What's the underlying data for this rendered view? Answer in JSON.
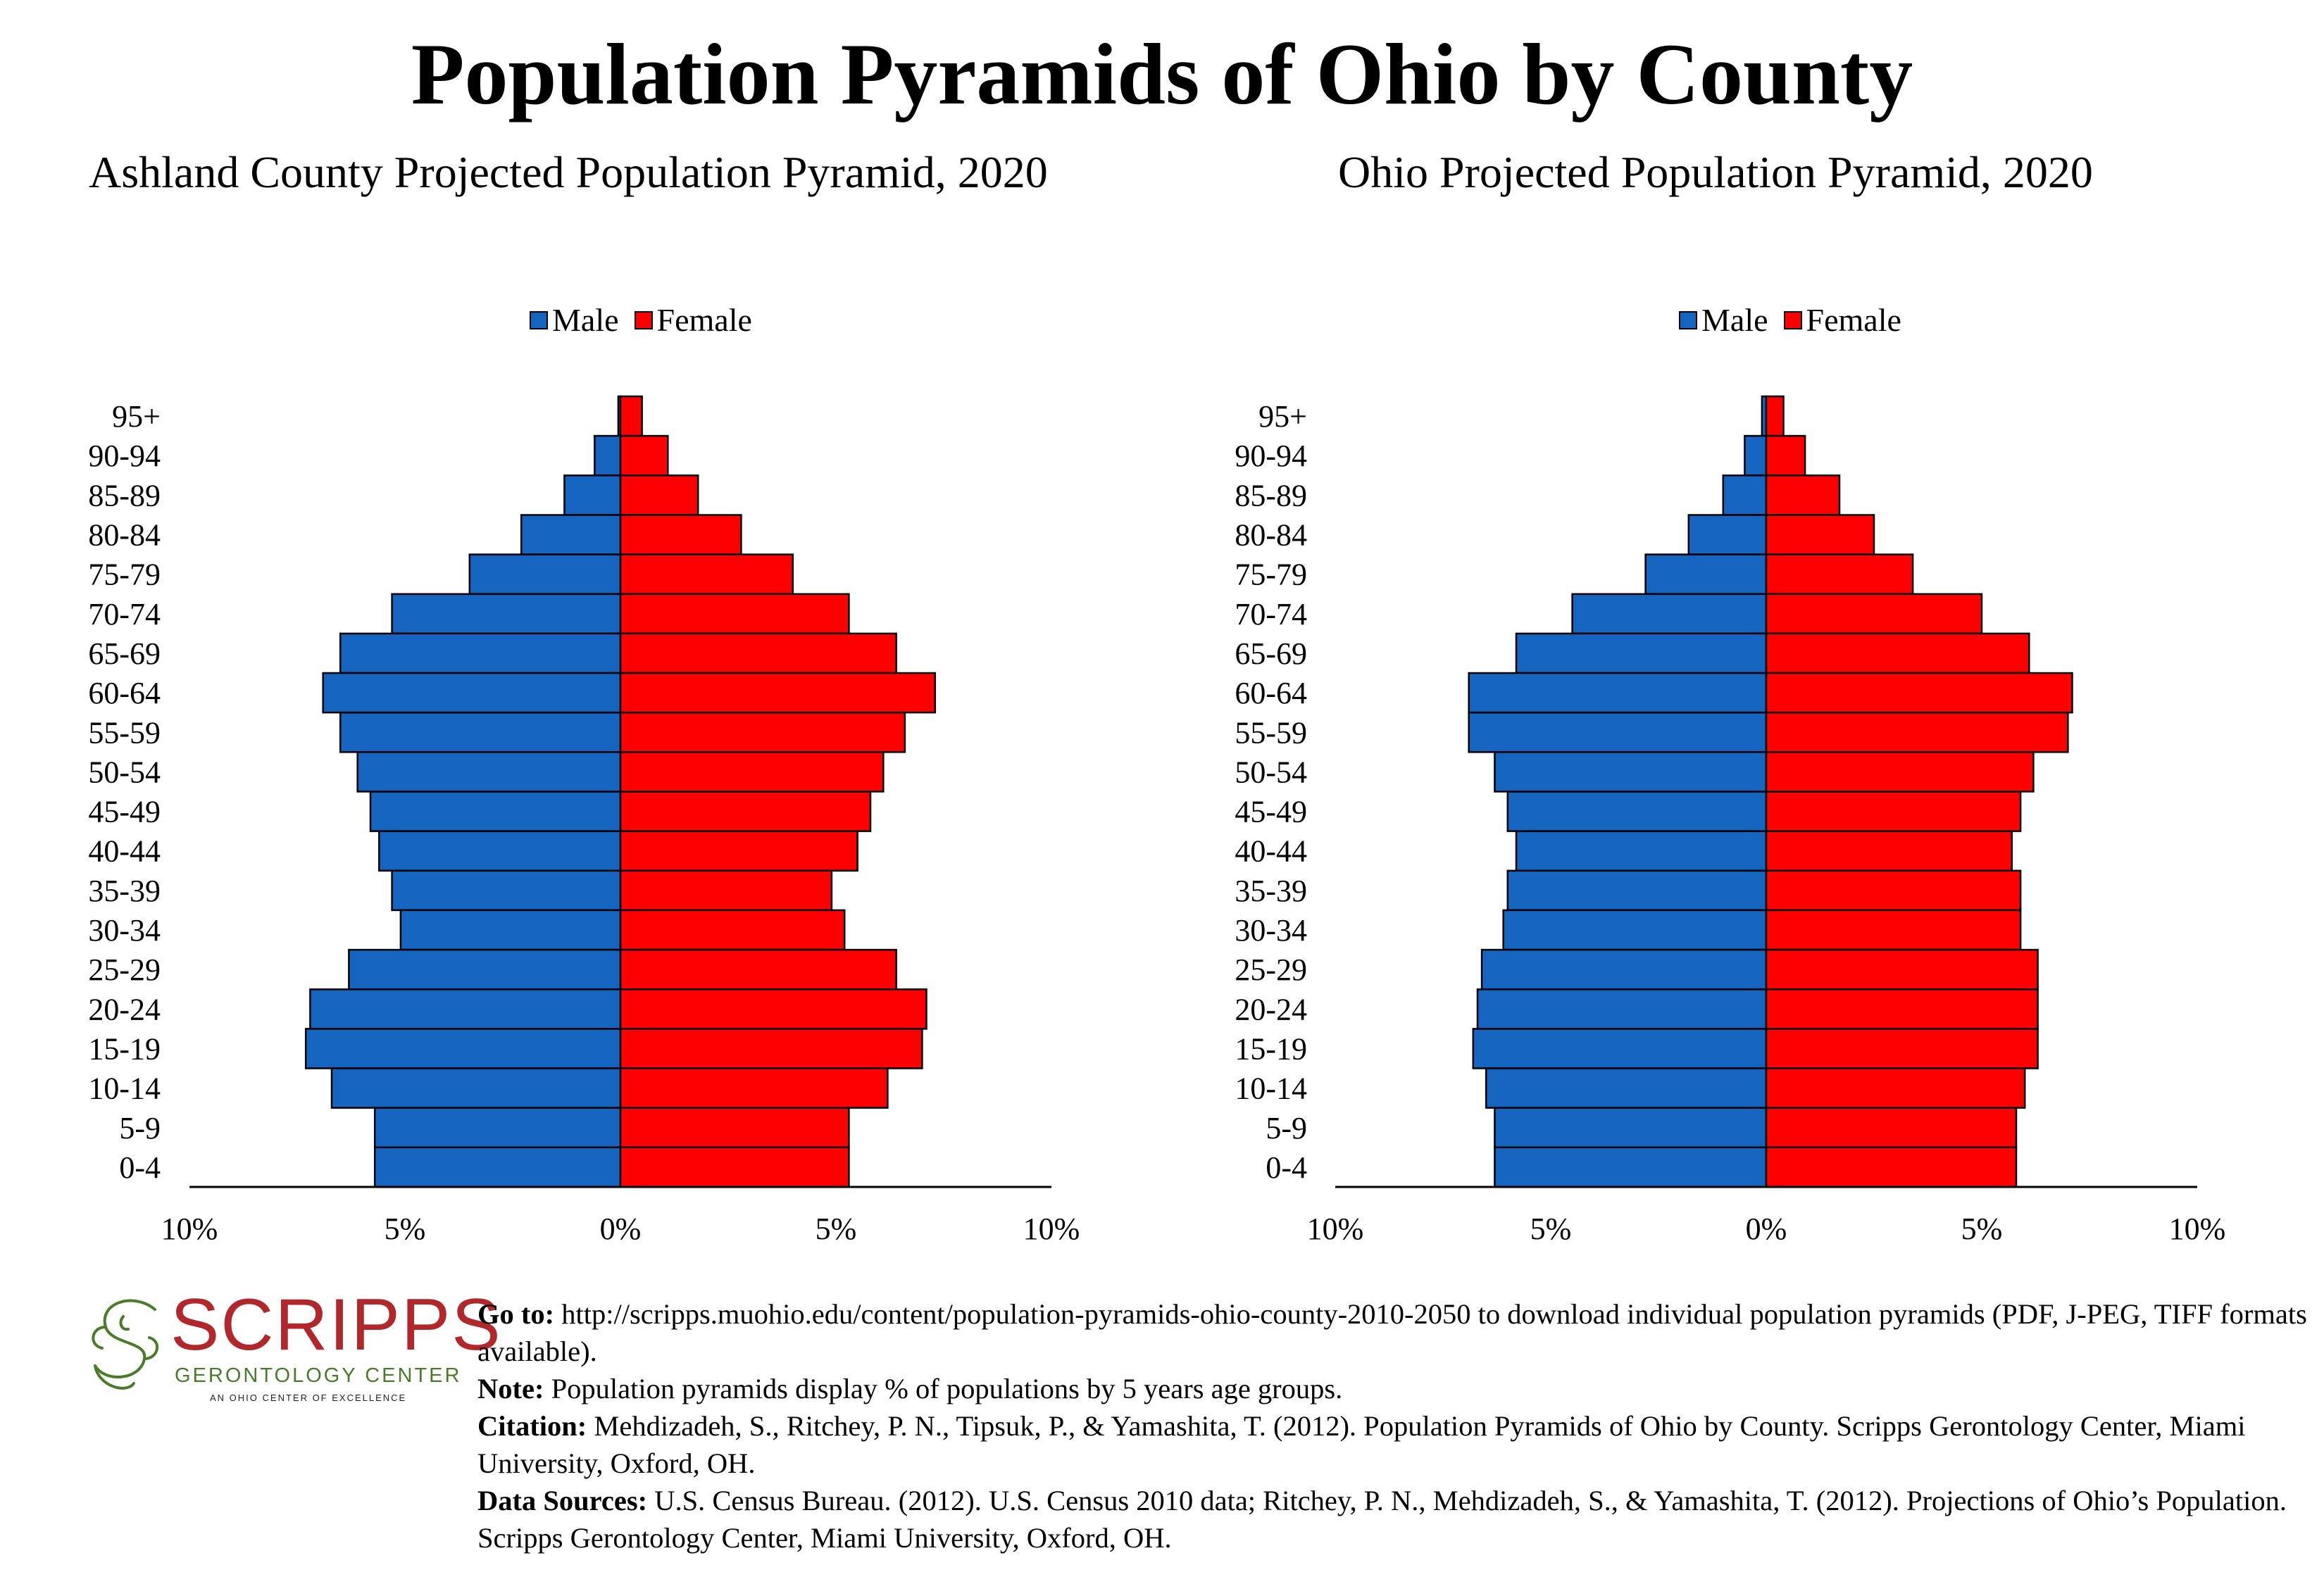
{
  "header": {
    "title": "Population Pyramids of Ohio by County"
  },
  "legend": {
    "male_label": "Male",
    "female_label": "Female"
  },
  "colors": {
    "male": "#1565c0",
    "female": "#ff0000",
    "outline": "#000000"
  },
  "chart_data": [
    {
      "type": "bar",
      "orientation": "horizontal-pyramid",
      "title": "Ashland County Projected Population Pyramid, 2020",
      "categories": [
        "95+",
        "90-94",
        "85-89",
        "80-84",
        "75-79",
        "70-74",
        "65-69",
        "60-64",
        "55-59",
        "50-54",
        "45-49",
        "40-44",
        "35-39",
        "30-34",
        "25-29",
        "20-24",
        "15-19",
        "10-14",
        "5-9",
        "0-4"
      ],
      "series": [
        {
          "name": "Male",
          "values": [
            0.05,
            0.6,
            1.3,
            2.3,
            3.5,
            5.3,
            6.5,
            6.9,
            6.5,
            6.1,
            5.8,
            5.6,
            5.3,
            5.1,
            6.3,
            7.2,
            7.3,
            6.7,
            5.7,
            5.7
          ]
        },
        {
          "name": "Female",
          "values": [
            0.5,
            1.1,
            1.8,
            2.8,
            4.0,
            5.3,
            6.4,
            7.3,
            6.6,
            6.1,
            5.8,
            5.5,
            4.9,
            5.2,
            6.4,
            7.1,
            7.0,
            6.2,
            5.3,
            5.3
          ]
        }
      ],
      "xlim": [
        -10,
        10
      ],
      "xticks": [
        "10%",
        "5%",
        "0%",
        "5%",
        "10%"
      ],
      "legend_position": "top-center"
    },
    {
      "type": "bar",
      "orientation": "horizontal-pyramid",
      "title": "Ohio Projected Population Pyramid, 2020",
      "categories": [
        "95+",
        "90-94",
        "85-89",
        "80-84",
        "75-79",
        "70-74",
        "65-69",
        "60-64",
        "55-59",
        "50-54",
        "45-49",
        "40-44",
        "35-39",
        "30-34",
        "25-29",
        "20-24",
        "15-19",
        "10-14",
        "5-9",
        "0-4"
      ],
      "series": [
        {
          "name": "Male",
          "values": [
            0.1,
            0.5,
            1.0,
            1.8,
            2.8,
            4.5,
            5.8,
            6.9,
            6.9,
            6.3,
            6.0,
            5.8,
            6.0,
            6.1,
            6.6,
            6.7,
            6.8,
            6.5,
            6.3,
            6.3
          ]
        },
        {
          "name": "Female",
          "values": [
            0.4,
            0.9,
            1.7,
            2.5,
            3.4,
            5.0,
            6.1,
            7.1,
            7.0,
            6.2,
            5.9,
            5.7,
            5.9,
            5.9,
            6.3,
            6.3,
            6.3,
            6.0,
            5.8,
            5.8
          ]
        }
      ],
      "xlim": [
        -10,
        10
      ],
      "xticks": [
        "10%",
        "5%",
        "0%",
        "5%",
        "10%"
      ],
      "legend_position": "top-center"
    }
  ],
  "logo": {
    "wordmark": "SCRIPPS",
    "subtitle": "GERONTOLOGY CENTER",
    "tagline": "AN OHIO CENTER OF EXCELLENCE",
    "colors": {
      "word": "#b0282b",
      "sub": "#4a7a2a"
    }
  },
  "footer": {
    "goto_label": "Go to:",
    "goto_text": " http://scripps.muohio.edu/content/population-pyramids-ohio-county-2010-2050 to download individual population pyramids (PDF, J-PEG, TIFF formats available).",
    "note_label": "Note:",
    "note_text": " Population pyramids display % of populations by 5 years age groups.",
    "citation_label": "Citation:",
    "citation_text": " Mehdizadeh, S., Ritchey, P. N., Tipsuk, P., & Yamashita, T. (2012). Population Pyramids of Ohio by County. Scripps Gerontology Center, Miami University, Oxford, OH.",
    "sources_label": "Data Sources:",
    "sources_text": " U.S. Census Bureau. (2012). U.S. Census 2010 data; Ritchey, P. N., Mehdizadeh, S., & Yamashita, T. (2012). Projections of Ohio’s Population. Scripps Gerontology Center, Miami University, Oxford, OH."
  }
}
